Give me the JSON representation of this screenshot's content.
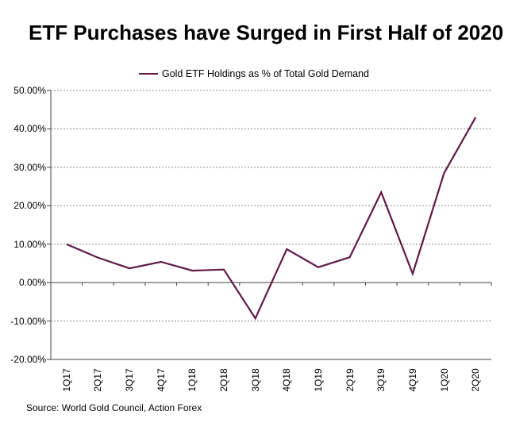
{
  "title": "ETF Purchases have Surged in First Half of 2020",
  "source": "Source: World Gold Council, Action Forex",
  "colors": {
    "series_line": "#5F1A45",
    "gridline": "#8C8C7E",
    "axis": "#404040",
    "text": "#000000",
    "background": "#FFFFFF"
  },
  "chart_data": {
    "type": "line",
    "title": "ETF Purchases have Surged in First Half of 2020",
    "legend_entries": [
      "Gold ETF Holdings as % of Total Gold Demand"
    ],
    "legend_position": "top-center",
    "grid": true,
    "xlabel": "",
    "ylabel": "",
    "categories": [
      "1Q17",
      "2Q17",
      "3Q17",
      "4Q17",
      "1Q18",
      "2Q18",
      "3Q18",
      "4Q18",
      "1Q19",
      "2Q19",
      "3Q19",
      "4Q19",
      "1Q20",
      "2Q20"
    ],
    "series": [
      {
        "name": "Gold ETF Holdings as % of Total Gold Demand",
        "values": [
          10.0,
          6.5,
          3.7,
          5.4,
          3.1,
          3.4,
          -9.3,
          8.7,
          4.0,
          6.6,
          23.5,
          2.3,
          28.5,
          43.0
        ]
      }
    ],
    "ylim": [
      -20,
      50
    ],
    "ytick_values": [
      50,
      40,
      30,
      20,
      10,
      0,
      -10,
      -20
    ],
    "ytick_labels": [
      "50.00%",
      "40.00%",
      "30.00%",
      "20.00%",
      "10.00%",
      "0.00%",
      "-10.00%",
      "-20.00%"
    ],
    "value_axis_format": "percent_two_decimals",
    "category_axis_crosses_at": 0
  }
}
